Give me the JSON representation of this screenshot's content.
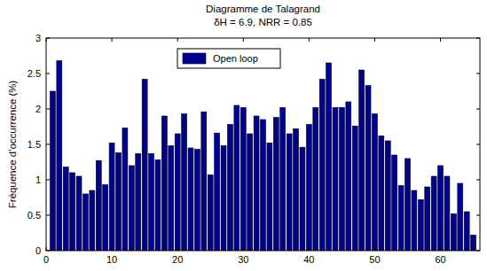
{
  "chart_data": {
    "type": "bar",
    "title": "Diagramme de Talagrand",
    "subtitle": "δH = 6.9, NRR = 0.85",
    "y_label": "Fréquence d'occurrence (%)",
    "x": [
      1,
      2,
      3,
      4,
      5,
      6,
      7,
      8,
      9,
      10,
      11,
      12,
      13,
      14,
      15,
      16,
      17,
      18,
      19,
      20,
      21,
      22,
      23,
      24,
      25,
      26,
      27,
      28,
      29,
      30,
      31,
      32,
      33,
      34,
      35,
      36,
      37,
      38,
      39,
      40,
      41,
      42,
      43,
      44,
      45,
      46,
      47,
      48,
      49,
      50,
      51,
      52,
      53,
      54,
      55,
      56,
      57,
      58,
      59,
      60,
      61,
      62,
      63,
      64,
      65
    ],
    "series": [
      {
        "name": "Open loop",
        "color": "#000090",
        "values": [
          2.25,
          2.68,
          1.18,
          1.1,
          1.05,
          0.8,
          0.85,
          1.27,
          0.93,
          1.52,
          1.38,
          1.73,
          1.2,
          1.37,
          2.42,
          1.37,
          1.28,
          1.9,
          1.48,
          1.65,
          1.93,
          1.45,
          1.43,
          1.96,
          1.07,
          1.66,
          1.48,
          1.78,
          2.05,
          2.02,
          1.65,
          1.9,
          1.85,
          1.52,
          1.88,
          2.02,
          1.65,
          1.72,
          1.46,
          1.78,
          2.02,
          2.42,
          2.65,
          2.02,
          2.02,
          2.1,
          1.76,
          2.55,
          2.33,
          1.93,
          1.62,
          1.55,
          1.35,
          0.92,
          1.3,
          0.85,
          0.72,
          0.9,
          1.05,
          1.2,
          1.05,
          0.52,
          0.95,
          0.55,
          0.22
        ]
      }
    ],
    "xlim": [
      0,
      66
    ],
    "xticks": [
      0,
      10,
      20,
      30,
      40,
      50,
      60
    ],
    "ylim": [
      0,
      3
    ],
    "yticks": [
      0,
      0.5,
      1,
      1.5,
      2,
      2.5,
      3
    ],
    "grid": false,
    "legend": "top"
  }
}
